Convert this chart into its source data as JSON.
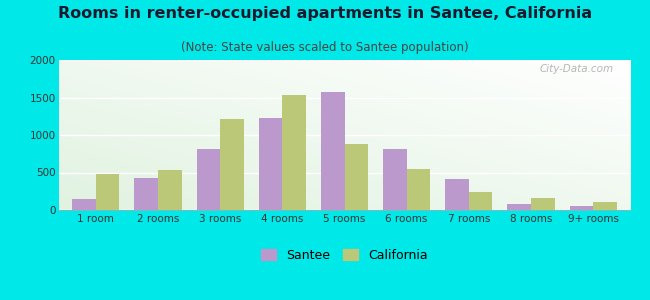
{
  "title": "Rooms in renter-occupied apartments in Santee, California",
  "subtitle": "(Note: State values scaled to Santee population)",
  "categories": [
    "1 room",
    "2 rooms",
    "3 rooms",
    "4 rooms",
    "5 rooms",
    "6 rooms",
    "7 rooms",
    "8 rooms",
    "9+ rooms"
  ],
  "santee_values": [
    150,
    430,
    820,
    1230,
    1570,
    810,
    410,
    75,
    55
  ],
  "california_values": [
    480,
    535,
    1210,
    1530,
    880,
    550,
    235,
    155,
    110
  ],
  "santee_color": "#bb99cc",
  "california_color": "#bbc878",
  "background_color": "#00e8e8",
  "ylim": [
    0,
    2000
  ],
  "yticks": [
    0,
    500,
    1000,
    1500,
    2000
  ],
  "bar_width": 0.38,
  "title_fontsize": 11.5,
  "subtitle_fontsize": 8.5,
  "tick_fontsize": 7.5,
  "legend_fontsize": 9,
  "watermark": "City-Data.com"
}
